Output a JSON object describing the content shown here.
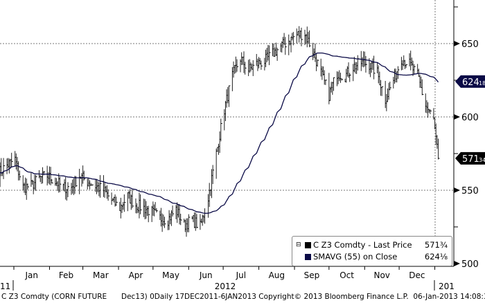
{
  "chart_data": {
    "type": "ohlc-line",
    "title": "",
    "security": "C Z3 Comdty",
    "ylim": [
      495,
      680
    ],
    "y_ticks": [
      500,
      550,
      600,
      650
    ],
    "x_month_labels": [
      "Jan",
      "Feb",
      "Mar",
      "Apr",
      "May",
      "Jun",
      "Jul",
      "Aug",
      "Sep",
      "Oct",
      "Nov",
      "Dec"
    ],
    "year_labels": {
      "left": "11",
      "mid": "2012",
      "right": "201"
    },
    "grid": "dotted",
    "legend_placement": "bottom-right",
    "series": [
      {
        "name": "C Z3 Comdty - Last Price",
        "last_label": "571",
        "last_frac": "3⁄4",
        "color": "#000000",
        "weekly_close": [
          [
            "2011-12-19",
            562
          ],
          [
            "2011-12-26",
            567
          ],
          [
            "2012-01-02",
            571
          ],
          [
            "2012-01-09",
            552
          ],
          [
            "2012-01-16",
            553
          ],
          [
            "2012-01-23",
            558
          ],
          [
            "2012-01-30",
            560
          ],
          [
            "2012-02-06",
            556
          ],
          [
            "2012-02-13",
            552
          ],
          [
            "2012-02-20",
            552
          ],
          [
            "2012-02-27",
            560
          ],
          [
            "2012-03-05",
            556
          ],
          [
            "2012-03-12",
            553
          ],
          [
            "2012-03-19",
            550
          ],
          [
            "2012-03-26",
            543
          ],
          [
            "2012-04-02",
            538
          ],
          [
            "2012-04-09",
            546
          ],
          [
            "2012-04-16",
            540
          ],
          [
            "2012-04-23",
            538
          ],
          [
            "2012-04-30",
            535
          ],
          [
            "2012-05-07",
            531
          ],
          [
            "2012-05-14",
            530
          ],
          [
            "2012-05-21",
            537
          ],
          [
            "2012-05-28",
            526
          ],
          [
            "2012-06-04",
            530
          ],
          [
            "2012-06-11",
            525
          ],
          [
            "2012-06-18",
            545
          ],
          [
            "2012-06-25",
            575
          ],
          [
            "2012-07-02",
            605
          ],
          [
            "2012-07-09",
            628
          ],
          [
            "2012-07-16",
            640
          ],
          [
            "2012-07-23",
            632
          ],
          [
            "2012-07-30",
            636
          ],
          [
            "2012-08-06",
            638
          ],
          [
            "2012-08-13",
            643
          ],
          [
            "2012-08-20",
            648
          ],
          [
            "2012-08-27",
            652
          ],
          [
            "2012-09-03",
            656
          ],
          [
            "2012-09-10",
            657
          ],
          [
            "2012-09-17",
            645
          ],
          [
            "2012-09-24",
            630
          ],
          [
            "2012-10-01",
            615
          ],
          [
            "2012-10-08",
            630
          ],
          [
            "2012-10-15",
            628
          ],
          [
            "2012-10-22",
            634
          ],
          [
            "2012-10-29",
            637
          ],
          [
            "2012-11-05",
            636
          ],
          [
            "2012-11-12",
            630
          ],
          [
            "2012-11-19",
            612
          ],
          [
            "2012-11-26",
            625
          ],
          [
            "2012-12-03",
            640
          ],
          [
            "2012-12-10",
            636
          ],
          [
            "2012-12-17",
            628
          ],
          [
            "2012-12-24",
            608
          ],
          [
            "2012-12-31",
            598
          ],
          [
            "2013-01-04",
            571.75
          ]
        ]
      },
      {
        "name": "SMAVG (55) on Close",
        "last_label": "624",
        "last_frac": "1⁄8",
        "color": "#0a0a46",
        "period": 55
      }
    ]
  },
  "legend": {
    "row1_name": "C Z3 Comdty - Last Price",
    "row1_value": "571¾",
    "row2_name": "SMAVG (55) on Close",
    "row2_value": "624⅛"
  },
  "footer": {
    "left": "C Z3 Comdty (CORN FUTURE",
    "right": "Dec13) 0Daily 17DEC2011-6JAN2013 Copyright© 2013 Bloomberg Finance L.P.  06-Jan-2013 14:08:30"
  }
}
